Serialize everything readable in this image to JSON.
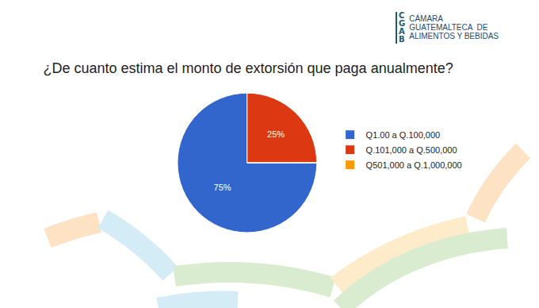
{
  "header": {
    "logo_initials": "CGAB",
    "logo_lines": [
      "CÁMARA",
      "GUATEMALTECA  DE",
      "ALIMENTOS Y BEBIDAS"
    ]
  },
  "chart_data": {
    "type": "pie",
    "title": "¿De cuanto estima el monto de extorsión que paga anualmente?",
    "categories": [
      "Q1.00 a Q.100,000",
      "Q.101,000 a Q.500,000",
      "Q501,000 a Q.1,000,000"
    ],
    "values": [
      75,
      25,
      0
    ],
    "value_labels": [
      "75%",
      "25%",
      null
    ],
    "colors": [
      "#3366cc",
      "#dc3912",
      "#ff9900"
    ],
    "data_labels": true,
    "legend": "right"
  }
}
